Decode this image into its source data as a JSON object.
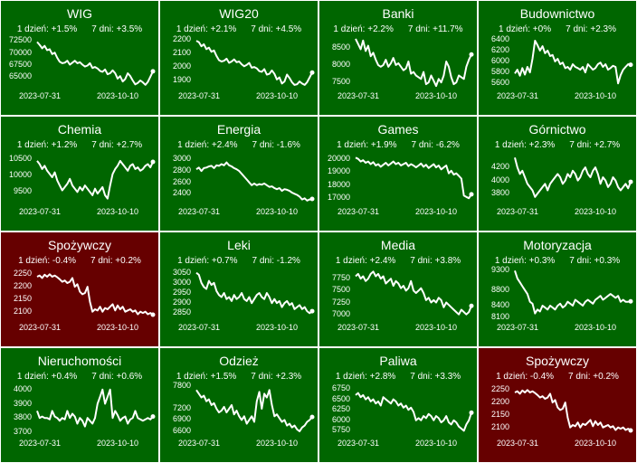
{
  "colors": {
    "up": "#006600",
    "down": "#660000",
    "line": "#ffffff",
    "border": "#ffffff"
  },
  "chart_data": [
    {
      "type": "line",
      "title": "WIG",
      "day_change": "1 dzień: +1.5%",
      "week_change": "7 dni: +3.5%",
      "x_start": "2023-07-31",
      "x_end": "2023-10-10",
      "yticks": [
        72500,
        70000,
        67500,
        65000
      ],
      "ylim": [
        62800,
        73700
      ],
      "trend": "up",
      "values": [
        72300,
        71700,
        71000,
        71500,
        70600,
        70800,
        69800,
        70100,
        69000,
        68200,
        67900,
        68000,
        68400,
        67600,
        68000,
        68400,
        67900,
        68100,
        67600,
        67200,
        67400,
        67900,
        66900,
        67100,
        66800,
        66300,
        66100,
        66600,
        65600,
        65800,
        66400,
        65800,
        64700,
        65200,
        64100,
        64600,
        65800,
        65200,
        64300,
        63500,
        63800,
        64300,
        63900,
        63400,
        64000,
        65100,
        66200
      ]
    },
    {
      "type": "line",
      "title": "WIG20",
      "day_change": "1 dzień: +2.1%",
      "week_change": "7 dni: +4.5%",
      "x_start": "2023-07-31",
      "x_end": "2023-10-10",
      "yticks": [
        2200,
        2100,
        2000,
        1900
      ],
      "ylim": [
        1850,
        2230
      ],
      "trend": "up",
      "values": [
        2190,
        2180,
        2150,
        2165,
        2130,
        2140,
        2110,
        2120,
        2080,
        2050,
        2040,
        2045,
        2060,
        2030,
        2040,
        2055,
        2035,
        2040,
        2020,
        2005,
        2015,
        2030,
        1995,
        2000,
        1990,
        1970,
        1965,
        1985,
        1945,
        1950,
        1975,
        1950,
        1910,
        1925,
        1880,
        1895,
        1945,
        1920,
        1890,
        1870,
        1875,
        1895,
        1880,
        1870,
        1890,
        1925,
        1960
      ]
    },
    {
      "type": "line",
      "title": "Banki",
      "day_change": "1 dzień: +2.2%",
      "week_change": "7 dni: +11.7%",
      "x_start": "2023-07-31",
      "x_end": "2023-10-10",
      "yticks": [
        8500,
        8000,
        7500
      ],
      "ylim": [
        7350,
        8850
      ],
      "trend": "up",
      "values": [
        8750,
        8600,
        8450,
        8700,
        8400,
        8550,
        8250,
        8350,
        8150,
        8000,
        7950,
        8000,
        8150,
        7950,
        8050,
        8200,
        8000,
        8050,
        7950,
        7850,
        7900,
        8100,
        7750,
        7800,
        7700,
        7650,
        7600,
        7800,
        7450,
        7500,
        7700,
        7550,
        7400,
        7600,
        7500,
        7700,
        8100,
        7950,
        7650,
        7450,
        7500,
        7700,
        7650,
        7600,
        7950,
        8150,
        8300
      ]
    },
    {
      "type": "line",
      "title": "Budownictwo",
      "day_change": "1 dzień: +0%",
      "week_change": "7 dni: +2.3%",
      "x_start": "2023-07-31",
      "x_end": "2023-10-10",
      "yticks": [
        6400,
        6200,
        6000,
        5800,
        5600
      ],
      "ylim": [
        5520,
        6480
      ],
      "trend": "up",
      "values": [
        5780,
        5850,
        5740,
        5880,
        5760,
        5900,
        5800,
        6050,
        6380,
        6300,
        6200,
        6280,
        6150,
        6200,
        6100,
        6120,
        6000,
        6050,
        5950,
        5980,
        5880,
        5900,
        5850,
        5950,
        5900,
        5880,
        5850,
        5900,
        5800,
        5950,
        5900,
        5850,
        5880,
        5950,
        5980,
        5900,
        5950,
        5850,
        5880,
        5920,
        5900,
        5600,
        5750,
        5850,
        5900,
        5950,
        5940
      ]
    },
    {
      "type": "line",
      "title": "Chemia",
      "day_change": "1 dzień: +1.2%",
      "week_change": "7 dni: +2.7%",
      "x_start": "2023-07-31",
      "x_end": "2023-10-10",
      "yticks": [
        10500,
        10000,
        9500
      ],
      "ylim": [
        9150,
        10750
      ],
      "trend": "up",
      "values": [
        10450,
        10350,
        10200,
        10300,
        10150,
        10050,
        9950,
        10100,
        9850,
        9700,
        9550,
        9650,
        9750,
        9900,
        9700,
        9600,
        9500,
        9650,
        9550,
        9700,
        9600,
        9500,
        9400,
        9600,
        9450,
        9550,
        9650,
        9400,
        9300,
        9700,
        10050,
        10200,
        10300,
        10450,
        10350,
        10250,
        10150,
        10300,
        10350,
        10200,
        10250,
        10150,
        10200,
        10300,
        10350,
        10250,
        10420
      ]
    },
    {
      "type": "line",
      "title": "Energia",
      "day_change": "1 dzień: +2.4%",
      "week_change": "7 dni: -1.6%",
      "x_start": "2023-07-31",
      "x_end": "2023-10-10",
      "yticks": [
        3000,
        2800,
        2600,
        2400
      ],
      "ylim": [
        2230,
        3150
      ],
      "trend": "up",
      "values": [
        2830,
        2860,
        2800,
        2850,
        2860,
        2880,
        2890,
        2850,
        2900,
        2890,
        2920,
        2900,
        2950,
        2900,
        2880,
        2850,
        2830,
        2800,
        2750,
        2700,
        2650,
        2600,
        2550,
        2580,
        2550,
        2570,
        2560,
        2580,
        2550,
        2520,
        2530,
        2500,
        2480,
        2500,
        2450,
        2480,
        2470,
        2450,
        2420,
        2400,
        2380,
        2350,
        2300,
        2320,
        2280,
        2300,
        2310
      ]
    },
    {
      "type": "line",
      "title": "Games",
      "day_change": "1 dzień: +1.9%",
      "week_change": "7 dni: -6.2%",
      "x_start": "2023-07-31",
      "x_end": "2023-10-10",
      "yticks": [
        20000,
        19000,
        18000,
        17000
      ],
      "ylim": [
        16600,
        20600
      ],
      "trend": "up",
      "values": [
        20100,
        20000,
        19800,
        19900,
        19700,
        19800,
        19600,
        19750,
        19500,
        19600,
        19400,
        19550,
        19700,
        19500,
        19650,
        19800,
        19600,
        19700,
        19500,
        19600,
        19700,
        19450,
        19600,
        19500,
        19350,
        19500,
        19650,
        19400,
        19550,
        19300,
        19450,
        19600,
        19350,
        19500,
        19200,
        19350,
        19500,
        18900,
        19100,
        18800,
        18900,
        18700,
        18500,
        17200,
        17100,
        17000,
        17300
      ]
    },
    {
      "type": "line",
      "title": "Górnictwo",
      "day_change": "1 dzień: +2.3%",
      "week_change": "7 dni: +2.7%",
      "x_start": "2023-07-31",
      "x_end": "2023-10-10",
      "yticks": [
        4200,
        4000,
        3800
      ],
      "ylim": [
        3650,
        4450
      ],
      "trend": "up",
      "values": [
        4350,
        4200,
        4100,
        4150,
        4050,
        3950,
        3900,
        3850,
        3750,
        3800,
        3850,
        3900,
        3950,
        3850,
        3950,
        4000,
        4050,
        4100,
        4050,
        3950,
        4000,
        4100,
        4050,
        4150,
        4100,
        4000,
        4050,
        4150,
        4200,
        4100,
        4050,
        4150,
        4200,
        4100,
        3950,
        4050,
        4000,
        3900,
        3950,
        4050,
        4000,
        3900,
        3850,
        3900,
        3950,
        3880,
        3980
      ]
    },
    {
      "type": "line",
      "title": "Spożywczy",
      "day_change": "1 dzień: -0.4%",
      "week_change": "7 dni: +0.2%",
      "x_start": "2023-07-31",
      "x_end": "2023-10-10",
      "yticks": [
        2250,
        2200,
        2150,
        2100
      ],
      "ylim": [
        2070,
        2280
      ],
      "trend": "down",
      "values": [
        2240,
        2245,
        2235,
        2248,
        2240,
        2250,
        2240,
        2245,
        2238,
        2230,
        2220,
        2225,
        2215,
        2220,
        2235,
        2200,
        2210,
        2180,
        2170,
        2175,
        2200,
        2140,
        2100,
        2110,
        2105,
        2120,
        2100,
        2115,
        2110,
        2120,
        2130,
        2105,
        2125,
        2110,
        2120,
        2100,
        2105,
        2110,
        2100,
        2105,
        2090,
        2100,
        2095,
        2100,
        2090,
        2095,
        2088
      ]
    },
    {
      "type": "line",
      "title": "Leki",
      "day_change": "1 dzień: +0.7%",
      "week_change": "7 dni: -1.2%",
      "x_start": "2023-07-31",
      "x_end": "2023-10-10",
      "yticks": [
        3050,
        3000,
        2950,
        2900,
        2850
      ],
      "ylim": [
        2820,
        3080
      ],
      "trend": "up",
      "values": [
        3050,
        3040,
        3000,
        2980,
        2970,
        3010,
        2990,
        3000,
        2960,
        2940,
        2930,
        2950,
        2920,
        2930,
        2910,
        2940,
        2920,
        2930,
        2950,
        2920,
        2910,
        2930,
        2900,
        2920,
        2940,
        2950,
        2930,
        2920,
        2950,
        2930,
        2900,
        2920,
        2900,
        2910,
        2880,
        2900,
        2910,
        2890,
        2900,
        2870,
        2880,
        2890,
        2870,
        2880,
        2860,
        2850,
        2860
      ]
    },
    {
      "type": "line",
      "title": "Media",
      "day_change": "1 dzień: +2.4%",
      "week_change": "7 dni: +3.8%",
      "x_start": "2023-07-31",
      "x_end": "2023-10-10",
      "yticks": [
        7750,
        7500,
        7250,
        7000
      ],
      "ylim": [
        6900,
        8000
      ],
      "trend": "up",
      "values": [
        7800,
        7850,
        7750,
        7800,
        7700,
        7750,
        7850,
        7900,
        7800,
        7850,
        7750,
        7800,
        7650,
        7700,
        7750,
        7600,
        7700,
        7650,
        7550,
        7600,
        7500,
        7550,
        7700,
        7500,
        7450,
        7500,
        7550,
        7450,
        7300,
        7350,
        7250,
        7300,
        7250,
        7350,
        7300,
        7150,
        7250,
        7200,
        7150,
        7100,
        7050,
        7000,
        7100,
        7050,
        7000,
        7050,
        7180
      ]
    },
    {
      "type": "line",
      "title": "Motoryzacja",
      "day_change": "1 dzień: +0.3%",
      "week_change": "7 dni: +0.3%",
      "x_start": "2023-07-31",
      "x_end": "2023-10-10",
      "yticks": [
        9300,
        8800,
        8400,
        8100
      ],
      "ylim": [
        8050,
        9400
      ],
      "trend": "up",
      "values": [
        9300,
        9100,
        9000,
        8900,
        8800,
        8700,
        8500,
        8450,
        8200,
        8300,
        8250,
        8400,
        8350,
        8300,
        8400,
        8350,
        8300,
        8400,
        8450,
        8350,
        8400,
        8500,
        8450,
        8400,
        8550,
        8500,
        8450,
        8400,
        8500,
        8550,
        8500,
        8450,
        8550,
        8600,
        8650,
        8550,
        8600,
        8650,
        8700,
        8650,
        8600,
        8650,
        8500,
        8550,
        8500,
        8500,
        8510
      ]
    },
    {
      "type": "line",
      "title": "Nieruchomości",
      "day_change": "1 dzień: +0.4%",
      "week_change": "7 dni: +0.6%",
      "x_start": "2023-07-31",
      "x_end": "2023-10-10",
      "yticks": [
        4000,
        3900,
        3800,
        3700
      ],
      "ylim": [
        3680,
        4050
      ],
      "trend": "up",
      "values": [
        3850,
        3800,
        3810,
        3800,
        3800,
        3790,
        3850,
        3810,
        3800,
        3780,
        3800,
        3790,
        3850,
        3800,
        3830,
        3810,
        3760,
        3800,
        3780,
        3740,
        3800,
        3780,
        3760,
        3800,
        3900,
        3950,
        4000,
        3900,
        3950,
        4000,
        3800,
        3850,
        3820,
        3780,
        3800,
        3810,
        3760,
        3790,
        3800,
        3850,
        3800,
        3790,
        3780,
        3790,
        3800,
        3790,
        3810
      ]
    },
    {
      "type": "line",
      "title": "Odzież",
      "day_change": "1 dzień: +1.5%",
      "week_change": "7 dni: +2.3%",
      "x_start": "2023-07-31",
      "x_end": "2023-10-10",
      "yticks": [
        7800,
        7200,
        6900,
        6600
      ],
      "ylim": [
        6500,
        7900
      ],
      "trend": "up",
      "values": [
        7700,
        7600,
        7500,
        7550,
        7400,
        7450,
        7300,
        7350,
        7200,
        7100,
        7150,
        7250,
        7100,
        7200,
        7300,
        7050,
        7150,
        7000,
        6900,
        7000,
        6800,
        6900,
        7000,
        6850,
        7400,
        7650,
        7200,
        7600,
        7500,
        7700,
        7300,
        7000,
        7050,
        6950,
        6850,
        6900,
        6750,
        6800,
        6700,
        6750,
        6650,
        6600,
        6700,
        6750,
        6850,
        6900,
        6980
      ]
    },
    {
      "type": "line",
      "title": "Paliwa",
      "day_change": "1 dzień: +2.8%",
      "week_change": "7 dni: +3.3%",
      "x_start": "2023-07-31",
      "x_end": "2023-10-10",
      "yticks": [
        6750,
        6500,
        6250,
        6000,
        5750
      ],
      "ylim": [
        5650,
        6900
      ],
      "trend": "up",
      "values": [
        6600,
        6650,
        6550,
        6600,
        6500,
        6550,
        6450,
        6500,
        6400,
        6450,
        6350,
        6550,
        6500,
        6450,
        6400,
        6500,
        6450,
        6350,
        6400,
        6300,
        6350,
        6250,
        6300,
        6200,
        6000,
        6050,
        6000,
        6100,
        6050,
        6150,
        6100,
        6000,
        6100,
        6050,
        5950,
        6000,
        6100,
        5950,
        5900,
        6000,
        5950,
        5850,
        5800,
        5750,
        5900,
        6000,
        6180
      ]
    },
    {
      "type": "line",
      "title": "Spożywczy",
      "day_change": "1 dzień: -0.4%",
      "week_change": "7 dni: +0.2%",
      "x_start": "2023-07-31",
      "x_end": "2023-10-10",
      "yticks": [
        2250,
        2200,
        2150,
        2100
      ],
      "ylim": [
        2070,
        2280
      ],
      "trend": "down",
      "values": [
        2240,
        2245,
        2235,
        2248,
        2240,
        2250,
        2240,
        2245,
        2238,
        2230,
        2220,
        2225,
        2215,
        2220,
        2235,
        2200,
        2210,
        2180,
        2170,
        2175,
        2200,
        2140,
        2100,
        2110,
        2105,
        2120,
        2100,
        2115,
        2110,
        2120,
        2130,
        2105,
        2125,
        2110,
        2120,
        2100,
        2105,
        2110,
        2100,
        2105,
        2090,
        2100,
        2095,
        2100,
        2090,
        2095,
        2088
      ]
    }
  ]
}
